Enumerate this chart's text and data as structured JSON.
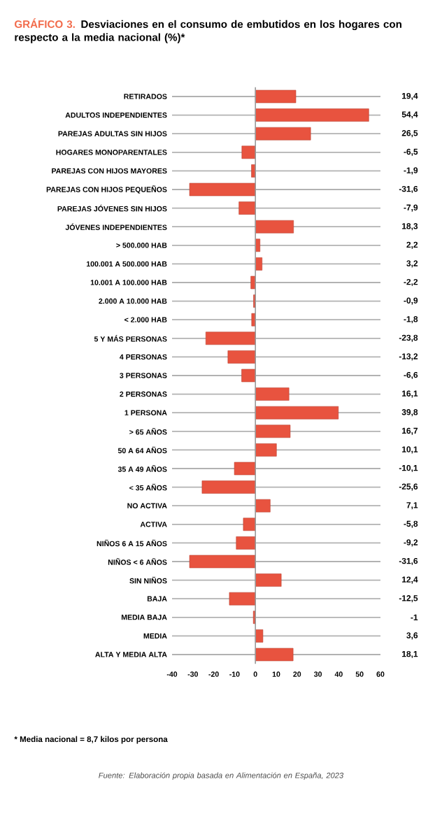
{
  "chart_data": {
    "type": "bar",
    "orientation": "horizontal",
    "title": "GRÁFICO 3.",
    "subtitle": "Desviaciones en el consumo de embutidos en los hogares con respecto a la media nacional (%)*",
    "categories": [
      "RETIRADOS",
      "ADULTOS INDEPENDIENTES",
      "PAREJAS ADULTAS SIN HIJOS",
      "HOGARES MONOPARENTALES",
      "PAREJAS CON HIJOS MAYORES",
      "PAREJAS CON HIJOS PEQUEÑOS",
      "PAREJAS JÓVENES SIN HIJOS",
      "JÓVENES INDEPENDIENTES",
      "> 500.000 HAB",
      "100.001 A 500.000 HAB",
      "10.001 A 100.000 HAB",
      "2.000 A 10.000 HAB",
      "< 2.000 HAB",
      "5 Y MÁS PERSONAS",
      "4 PERSONAS",
      "3 PERSONAS",
      "2 PERSONAS",
      "1 PERSONA",
      "> 65 AÑOS",
      "50 A 64 AÑOS",
      "35 A 49 AÑOS",
      "< 35 AÑOS",
      "NO ACTIVA",
      "ACTIVA",
      "NIÑOS 6 A 15 AÑOS",
      "NIÑOS < 6 AÑOS",
      "SIN NIÑOS",
      "BAJA",
      "MEDIA BAJA",
      "MEDIA",
      "ALTA Y MEDIA ALTA"
    ],
    "values": [
      19.4,
      54.4,
      26.5,
      -6.5,
      -1.9,
      -31.6,
      -7.9,
      18.3,
      2.2,
      3.2,
      -2.2,
      -0.9,
      -1.8,
      -23.8,
      -13.2,
      -6.6,
      16.1,
      39.8,
      16.7,
      10.1,
      -10.1,
      -25.6,
      7.1,
      -5.8,
      -9.2,
      -31.6,
      12.4,
      -12.5,
      -1,
      3.6,
      18.1
    ],
    "value_labels": [
      "19,4",
      "54,4",
      "26,5",
      "-6,5",
      "-1,9",
      "-31,6",
      "-7,9",
      "18,3",
      "2,2",
      "3,2",
      "-2,2",
      "-0,9",
      "-1,8",
      "-23,8",
      "-13,2",
      "-6,6",
      "16,1",
      "39,8",
      "16,7",
      "10,1",
      "-10,1",
      "-25,6",
      "7,1",
      "-5,8",
      "-9,2",
      "-31,6",
      "12,4",
      "-12,5",
      "-1",
      "3,6",
      "18,1"
    ],
    "color": "#e8533f",
    "xlim": [
      -40,
      60
    ],
    "xticks": [
      -40,
      -30,
      -20,
      -10,
      0,
      10,
      20,
      30,
      40,
      50,
      60
    ],
    "grid": "y",
    "annotations": [
      "* Media nacional = 8,7  kilos por persona",
      "Fuente: Elaboración propia basada en Alimentación en España, 2023"
    ]
  }
}
